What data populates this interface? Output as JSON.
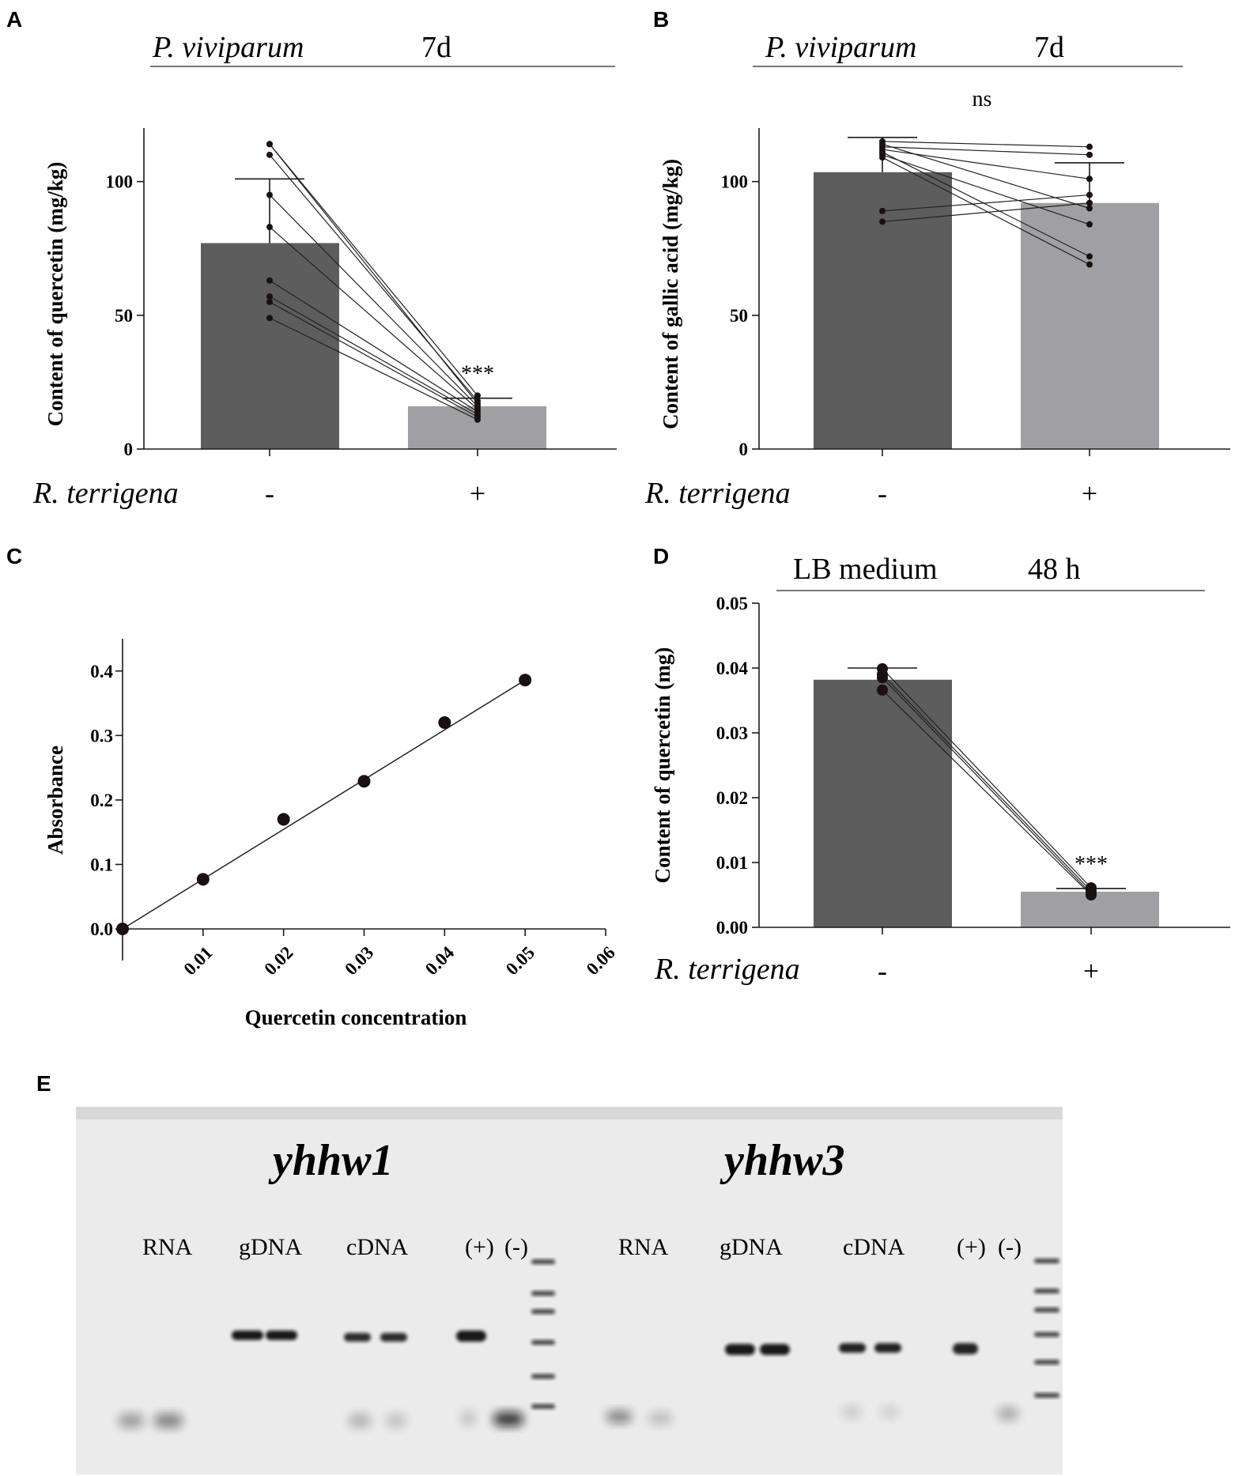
{
  "colors": {
    "control_bar": "#5d5d5d",
    "treated_bar": "#a0a0a4",
    "axis": "#1a1a1a",
    "point": "#1a1010",
    "gel_background": "#ebebeb",
    "gel_band": "#111111"
  },
  "chart_data": [
    {
      "panel": "A",
      "type": "bar",
      "header": {
        "organism": "P. viviparum",
        "time": "7d"
      },
      "ylabel": "Content of quercetin (mg/kg)",
      "ylim": [
        0,
        120
      ],
      "yticks": [
        0,
        50,
        100
      ],
      "xfactor": "R. terrigena",
      "categories": [
        "-",
        "+"
      ],
      "values": [
        77,
        16
      ],
      "errors": [
        24,
        3
      ],
      "paired_points": [
        [
          114,
          17
        ],
        [
          110,
          18
        ],
        [
          95,
          16
        ],
        [
          83,
          15
        ],
        [
          63,
          14
        ],
        [
          57,
          13
        ],
        [
          55,
          12
        ],
        [
          49,
          11
        ],
        [
          114,
          20
        ]
      ],
      "significance": "***"
    },
    {
      "panel": "B",
      "type": "bar",
      "header": {
        "organism": "P. viviparum",
        "time": "7d"
      },
      "ylabel": "Content of gallic acid (mg/kg)",
      "ylim": [
        0,
        120
      ],
      "yticks": [
        0,
        50,
        100
      ],
      "xfactor": "R. terrigena",
      "categories": [
        "-",
        "+"
      ],
      "values": [
        103.5,
        92
      ],
      "errors": [
        13,
        15
      ],
      "paired_points": [
        [
          115,
          113
        ],
        [
          113,
          110
        ],
        [
          112,
          101
        ],
        [
          111,
          72
        ],
        [
          109,
          69
        ],
        [
          89,
          95
        ],
        [
          85,
          92
        ],
        [
          110,
          84
        ],
        [
          114,
          90
        ]
      ],
      "significance": "ns"
    },
    {
      "panel": "C",
      "type": "scatter",
      "xlabel": "Quercetin concentration",
      "ylabel": "Absorbance",
      "xlim": [
        0,
        0.06
      ],
      "ylim": [
        0,
        0.45
      ],
      "xticks": [
        "0.01",
        "0.02",
        "0.03",
        "0.04",
        "0.05",
        "0.06"
      ],
      "yticks": [
        "0.0",
        "0.1",
        "0.2",
        "0.3",
        "0.4"
      ],
      "x": [
        0,
        0.01,
        0.02,
        0.03,
        0.04,
        0.05
      ],
      "y": [
        0,
        0.077,
        0.17,
        0.229,
        0.32,
        0.386
      ],
      "fit_line": {
        "x": [
          0,
          0.05
        ],
        "y": [
          0,
          0.386
        ]
      }
    },
    {
      "panel": "D",
      "type": "bar",
      "header": {
        "organism": "LB medium",
        "time": "48 h"
      },
      "ylabel": "Content of quercetin (mg)",
      "ylim": [
        0,
        0.05
      ],
      "yticks": [
        "0.00",
        "0.01",
        "0.02",
        "0.03",
        "0.04",
        "0.05"
      ],
      "xfactor": "R. terrigena",
      "categories": [
        "-",
        "+"
      ],
      "values": [
        0.0382,
        0.0055
      ],
      "errors": [
        0.0018,
        0.0005
      ],
      "paired_points": [
        [
          0.0399,
          0.0061
        ],
        [
          0.039,
          0.0056
        ],
        [
          0.0385,
          0.0052
        ],
        [
          0.0366,
          0.005
        ]
      ],
      "significance": "***"
    }
  ],
  "panels": {
    "a": {
      "letter": "A"
    },
    "b": {
      "letter": "B"
    },
    "c": {
      "letter": "C"
    },
    "d": {
      "letter": "D"
    },
    "e": {
      "letter": "E"
    }
  },
  "gel": {
    "genes": [
      "yhhw1",
      "yhhw3"
    ],
    "lane_labels": [
      "RNA",
      "gDNA",
      "cDNA",
      "(+)",
      "(-)"
    ]
  }
}
